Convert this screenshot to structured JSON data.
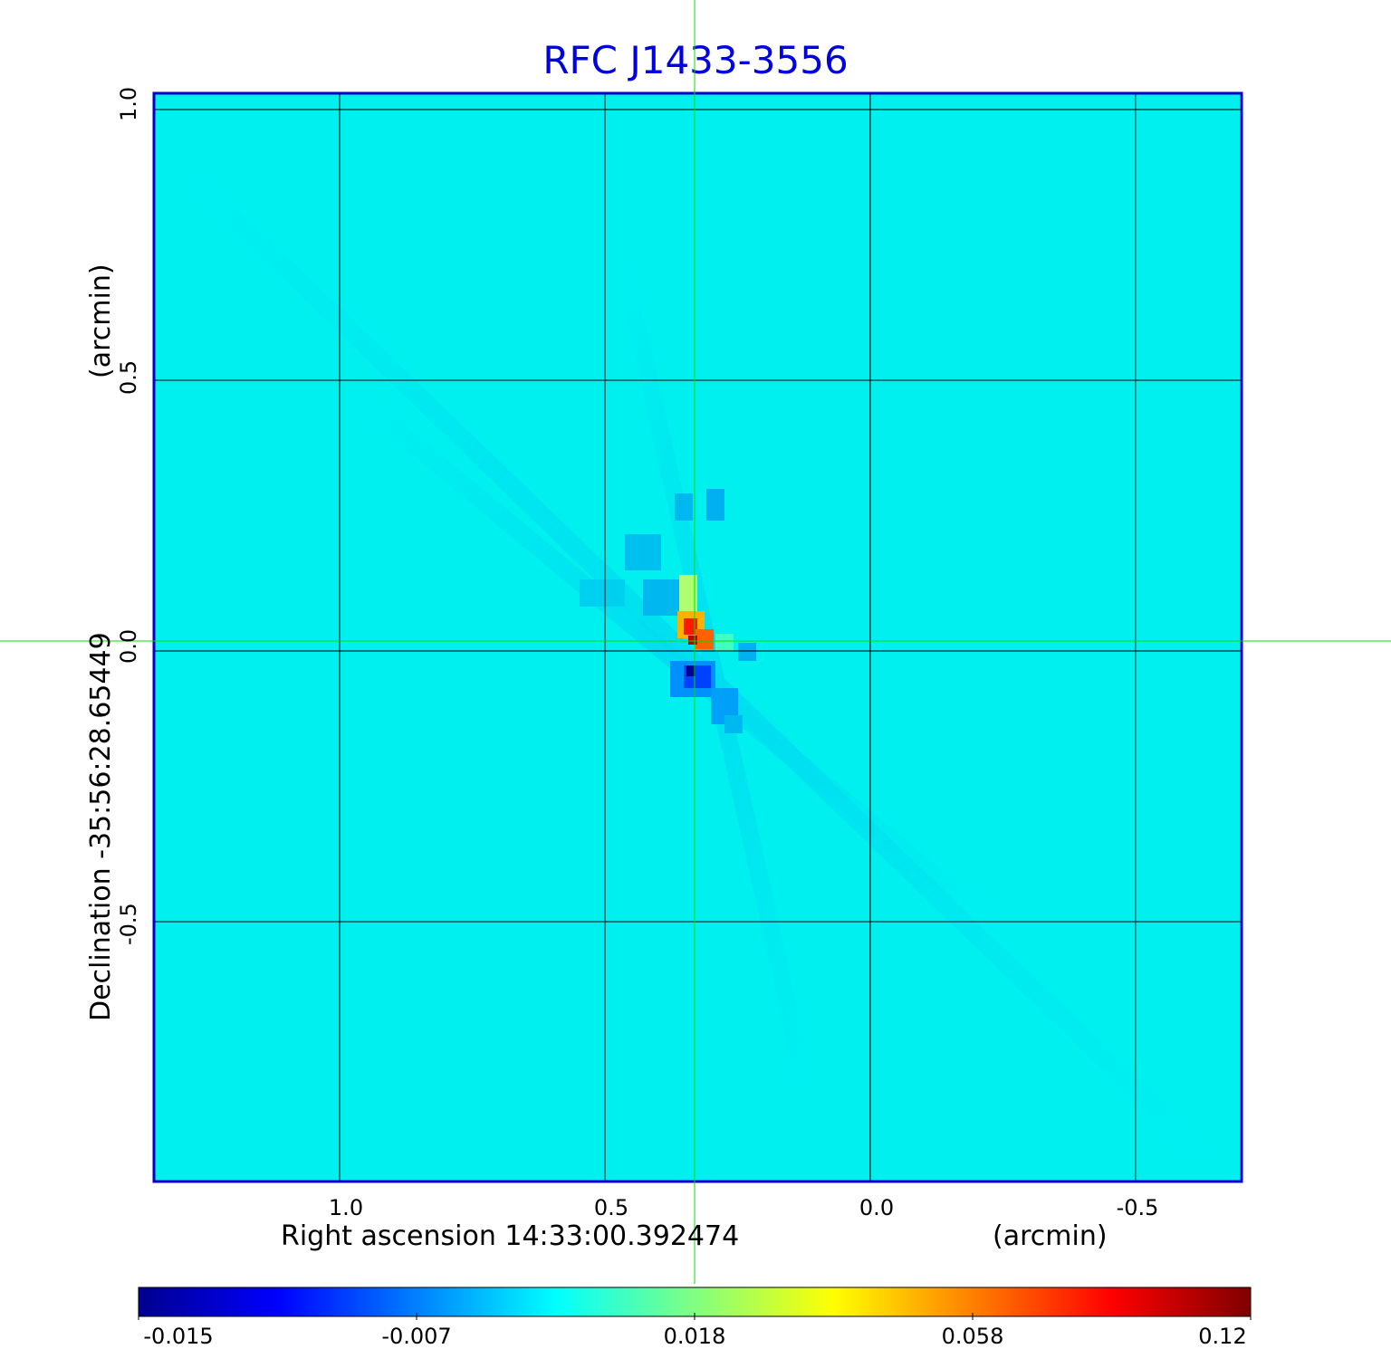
{
  "chart_data": {
    "type": "heatmap",
    "title": "RFC J1433-3556",
    "xlabel": "Right ascension  14:33:00.392474",
    "xunit": "(arcmin)",
    "ylabel": "Declination  -35:56:28.65449",
    "yunit": "(arcmin)",
    "x_ticks": [
      "1.0",
      "0.5",
      "0.0",
      "-0.5"
    ],
    "y_ticks": [
      "1.0",
      "0.5",
      "0.0",
      "-0.5"
    ],
    "xlim": [
      1.35,
      -0.7
    ],
    "ylim": [
      -0.98,
      1.03
    ],
    "grid": true,
    "crosshair": {
      "x": 0.33,
      "y": 0.02
    },
    "colorbar": {
      "ticks": [
        "-0.015",
        "-0.007",
        "0.018",
        "0.058",
        "0.12"
      ],
      "colormap": "jet"
    },
    "background_color": "#00f0f0",
    "features": [
      {
        "kind": "positive_peak",
        "x": 0.33,
        "y": 0.03,
        "value": 0.12
      },
      {
        "kind": "negative_peak",
        "x": 0.32,
        "y": -0.04,
        "value": -0.015
      }
    ]
  }
}
